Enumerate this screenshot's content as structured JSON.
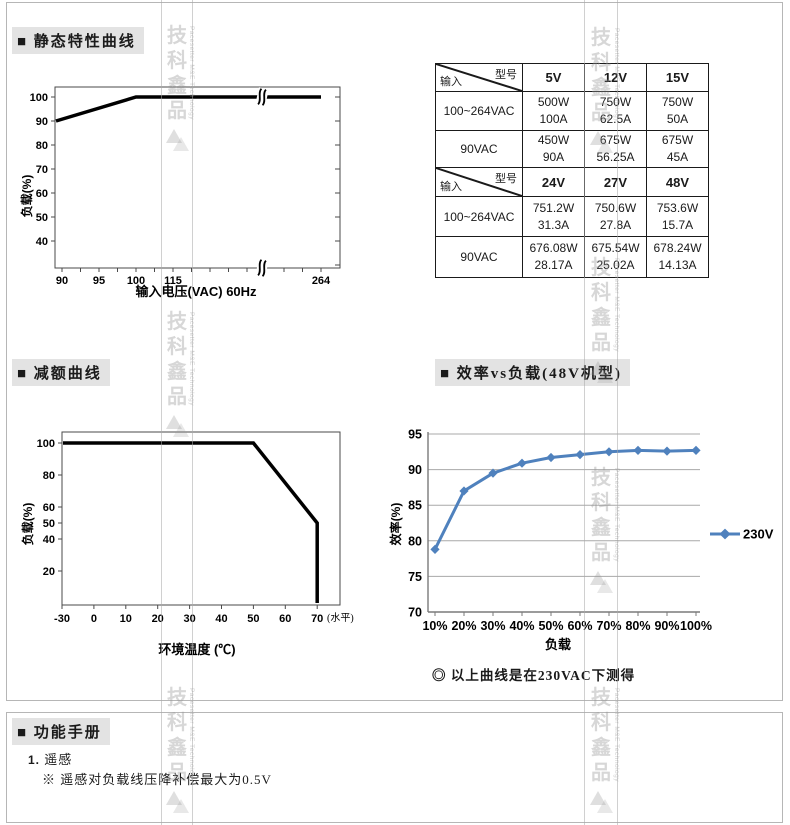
{
  "sections": {
    "static_curve": {
      "title": "■ 静态特性曲线"
    },
    "derating_curve": {
      "title": "■ 减额曲线"
    },
    "efficiency_curve": {
      "title": "■ 效率vs负载(48V机型)"
    },
    "manual": {
      "title": "■ 功能手册",
      "item1_no": "1.",
      "item1_label": "遥感",
      "item1_note": "※ 遥感对负载线压降补偿最大为0.5V"
    }
  },
  "caption": "◎ 以上曲线是在230VAC下测得",
  "table": {
    "corner_top": "型号",
    "corner_bottom": "输入",
    "blocks": [
      {
        "headers": [
          "5V",
          "12V",
          "15V"
        ],
        "rows": [
          {
            "label": "100~264VAC",
            "cells": [
              [
                "500W",
                "100A"
              ],
              [
                "750W",
                "62.5A"
              ],
              [
                "750W",
                "50A"
              ]
            ]
          },
          {
            "label": "90VAC",
            "cells": [
              [
                "450W",
                "90A"
              ],
              [
                "675W",
                "56.25A"
              ],
              [
                "675W",
                "45A"
              ]
            ]
          }
        ]
      },
      {
        "headers": [
          "24V",
          "27V",
          "48V"
        ],
        "rows": [
          {
            "label": "100~264VAC",
            "cells": [
              [
                "751.2W",
                "31.3A"
              ],
              [
                "750.6W",
                "27.8A"
              ],
              [
                "753.6W",
                "15.7A"
              ]
            ]
          },
          {
            "label": "90VAC",
            "cells": [
              [
                "676.08W",
                "28.17A"
              ],
              [
                "675.54W",
                "25.02A"
              ],
              [
                "678.24W",
                "14.13A"
              ]
            ]
          }
        ]
      }
    ]
  },
  "chart_data": [
    {
      "type": "line",
      "title": "静态特性曲线",
      "xlabel": "输入电压(VAC) 60Hz",
      "ylabel": "负载(%)",
      "x_ticks": [
        "90",
        "95",
        "100",
        "115",
        "264"
      ],
      "y_ticks": [
        40,
        50,
        60,
        70,
        80,
        90,
        100
      ],
      "axis_break": "between 115 and 264",
      "line_points": [
        [
          90,
          90
        ],
        [
          100,
          100
        ],
        [
          264,
          100
        ]
      ],
      "line_color": "#000000",
      "ylim": [
        30,
        105
      ]
    },
    {
      "type": "line",
      "title": "减额曲线",
      "xlabel": "环境温度 (℃)",
      "xlabel_suffix": "(水平)",
      "ylabel": "负载(%)",
      "x_ticks": [
        -30,
        0,
        10,
        20,
        30,
        40,
        50,
        60,
        70
      ],
      "y_ticks": [
        20,
        40,
        50,
        60,
        80,
        100
      ],
      "line_points": [
        [
          -30,
          100
        ],
        [
          50,
          100
        ],
        [
          70,
          50
        ],
        [
          70,
          0
        ]
      ],
      "line_color": "#000000",
      "ylim": [
        0,
        108
      ]
    },
    {
      "type": "line",
      "title": "效率vs负载(48V机型)",
      "xlabel": "负载",
      "ylabel": "效率(%)",
      "categories": [
        "10%",
        "20%",
        "30%",
        "40%",
        "50%",
        "60%",
        "70%",
        "80%",
        "90%",
        "100%"
      ],
      "series": [
        {
          "name": "230V",
          "color": "#4f81bd",
          "values": [
            78.8,
            87.0,
            89.5,
            90.9,
            91.7,
            92.1,
            92.5,
            92.7,
            92.6,
            92.7
          ]
        }
      ],
      "y_ticks": [
        70,
        75,
        80,
        85,
        90,
        95
      ],
      "ylim": [
        70,
        95
      ],
      "grid": true,
      "legend_position": "right"
    }
  ],
  "watermark": {
    "chars_top_to_bottom": [
      "技",
      "科",
      "鑫",
      "品"
    ],
    "subtext": "Pacesetter M&E Technology"
  }
}
